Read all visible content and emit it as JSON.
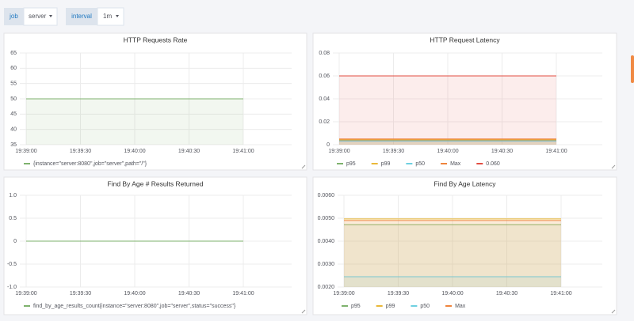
{
  "variables": [
    {
      "label": "job",
      "value": "server"
    },
    {
      "label": "interval",
      "value": "1m"
    }
  ],
  "chart_data": [
    {
      "type": "line",
      "title": "HTTP Requests Rate",
      "x": [
        "19:39:00",
        "19:39:30",
        "19:40:00",
        "19:40:30",
        "19:41:00"
      ],
      "series": [
        {
          "name": "{instance=\"server:8080\",job=\"server\",path=\"/\"}",
          "color": "#7eb26d",
          "values": [
            50,
            50,
            50,
            50,
            50
          ]
        }
      ],
      "ylim": [
        35,
        65
      ],
      "yticks": [
        35,
        40,
        45,
        50,
        55,
        60,
        65
      ],
      "grid": true,
      "fill": true
    },
    {
      "type": "line",
      "title": "HTTP Request Latency",
      "x": [
        "19:39:00",
        "19:39:30",
        "19:40:00",
        "19:40:30",
        "19:41:00"
      ],
      "series": [
        {
          "name": "p95",
          "color": "#7eb26d",
          "values": [
            0.004,
            0.004,
            0.004,
            0.004,
            0.004
          ]
        },
        {
          "name": "p99",
          "color": "#eab839",
          "values": [
            0.0045,
            0.0045,
            0.0045,
            0.0045,
            0.0045
          ]
        },
        {
          "name": "p50",
          "color": "#6ed0e0",
          "values": [
            0.003,
            0.003,
            0.003,
            0.003,
            0.003
          ]
        },
        {
          "name": "Max",
          "color": "#ef843c",
          "values": [
            0.005,
            0.005,
            0.005,
            0.005,
            0.005
          ]
        },
        {
          "name": "0.060",
          "color": "#e24d42",
          "values": [
            0.06,
            0.06,
            0.06,
            0.06,
            0.06
          ]
        }
      ],
      "ylim": [
        0,
        0.08
      ],
      "yticks": [
        0,
        0.02,
        0.04,
        0.06,
        0.08
      ],
      "grid": true,
      "fill": true
    },
    {
      "type": "line",
      "title": "Find By Age # Results Returned",
      "x": [
        "19:39:00",
        "19:39:30",
        "19:40:00",
        "19:40:30",
        "19:41:00"
      ],
      "series": [
        {
          "name": "find_by_age_results_count{instance=\"server:8080\",job=\"server\",status=\"success\"}",
          "color": "#7eb26d",
          "values": [
            0,
            0,
            0,
            0,
            0
          ]
        }
      ],
      "ylim": [
        -1,
        1
      ],
      "yticks": [
        {
          "value": -1,
          "label": "-1.0"
        },
        -0.5,
        0,
        0.5,
        {
          "value": 1,
          "label": "1.0"
        }
      ],
      "grid": true,
      "fill": true
    },
    {
      "type": "line",
      "title": "Find By Age Latency",
      "x": [
        "19:39:00",
        "19:39:30",
        "19:40:00",
        "19:40:30",
        "19:41:00"
      ],
      "series": [
        {
          "name": "p95",
          "color": "#7eb26d",
          "values": [
            0.00472,
            0.00472,
            0.00472,
            0.00472,
            0.00472
          ]
        },
        {
          "name": "p99",
          "color": "#eab839",
          "values": [
            0.00497,
            0.00497,
            0.00497,
            0.00497,
            0.00497
          ]
        },
        {
          "name": "p50",
          "color": "#6ed0e0",
          "values": [
            0.00245,
            0.00245,
            0.00245,
            0.00245,
            0.00245
          ]
        },
        {
          "name": "Max",
          "color": "#ef843c",
          "values": [
            0.0049,
            0.0049,
            0.0049,
            0.0049,
            0.0049
          ]
        }
      ],
      "ylim": [
        0.002,
        0.006
      ],
      "yticks": [
        {
          "value": 0.002,
          "label": "0.0020"
        },
        {
          "value": 0.003,
          "label": "0.0030"
        },
        {
          "value": 0.004,
          "label": "0.0040"
        },
        {
          "value": 0.005,
          "label": "0.0050"
        },
        {
          "value": 0.006,
          "label": "0.0060"
        }
      ],
      "grid": true,
      "fill": true
    }
  ]
}
